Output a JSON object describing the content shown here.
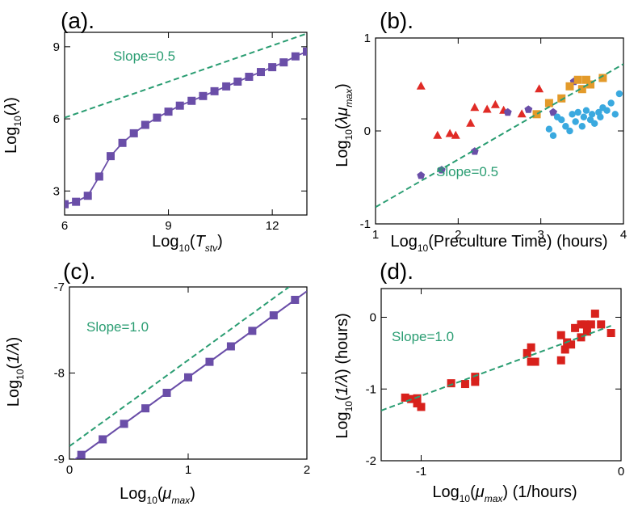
{
  "colors": {
    "purple": "#6a4ea8",
    "green": "#2a9d72",
    "red": "#e02b26",
    "orange": "#e39a2a",
    "blue": "#3aa9df",
    "sq_red": "#d8211c"
  },
  "chart_data": [
    {
      "panel": "(a).",
      "type": "line",
      "xlabel": {
        "main": "Log",
        "sub": "10",
        "arg": "T",
        "argsub": "stv"
      },
      "ylabel": {
        "main": "Log",
        "sub": "10",
        "arg": "λ"
      },
      "xlim": [
        6,
        13
      ],
      "ylim": [
        2,
        9.6
      ],
      "xticks": [
        6,
        9,
        12
      ],
      "yticks": [
        3,
        6,
        9
      ],
      "annotation": "Slope=0.5",
      "series": [
        {
          "kind": "line-markers",
          "color": "purple",
          "x": [
            6.0,
            6.33,
            6.67,
            7.0,
            7.33,
            7.67,
            8.0,
            8.33,
            8.67,
            9.0,
            9.33,
            9.67,
            10.0,
            10.33,
            10.67,
            11.0,
            11.33,
            11.67,
            12.0,
            12.33,
            12.67,
            13.0
          ],
          "y": [
            2.45,
            2.55,
            2.8,
            3.6,
            4.45,
            5.0,
            5.4,
            5.75,
            6.05,
            6.3,
            6.55,
            6.75,
            6.95,
            7.15,
            7.35,
            7.55,
            7.75,
            7.95,
            8.15,
            8.35,
            8.6,
            8.8
          ]
        },
        {
          "kind": "dashed",
          "color": "green",
          "x": [
            6,
            13
          ],
          "y": [
            6.05,
            9.55
          ]
        }
      ]
    },
    {
      "panel": "(b).",
      "type": "scatter",
      "xlabel": {
        "main": "Log",
        "sub": "10",
        "arg": "(Preculture Time) (hours)"
      },
      "ylabel": {
        "main": "Log",
        "sub": "10",
        "arg": "λμ",
        "argsub": "max"
      },
      "xlim": [
        1,
        4
      ],
      "ylim": [
        -1,
        1
      ],
      "xticks": [
        1,
        2,
        3,
        4
      ],
      "yticks": [
        -1,
        0,
        1
      ],
      "annotation": "Slope=0.5",
      "series": [
        {
          "kind": "triangle",
          "color": "red",
          "x": [
            1.55,
            1.75,
            1.9,
            1.97,
            2.15,
            2.2,
            2.35,
            2.45,
            2.55,
            2.77,
            2.98
          ],
          "y": [
            0.48,
            -0.05,
            -0.03,
            -0.05,
            0.08,
            0.25,
            0.23,
            0.28,
            0.22,
            0.18,
            0.45
          ]
        },
        {
          "kind": "pentagon",
          "color": "purple",
          "x": [
            1.55,
            1.8,
            2.2,
            2.6,
            2.85,
            3.15,
            3.4
          ],
          "y": [
            -0.48,
            -0.42,
            -0.22,
            0.2,
            0.23,
            0.2,
            0.53
          ]
        },
        {
          "kind": "square",
          "color": "orange",
          "x": [
            2.95,
            3.1,
            3.25,
            3.35,
            3.45,
            3.5,
            3.55,
            3.6,
            3.75
          ],
          "y": [
            0.18,
            0.3,
            0.35,
            0.48,
            0.55,
            0.45,
            0.55,
            0.5,
            0.57
          ]
        },
        {
          "kind": "circle",
          "color": "blue",
          "x": [
            3.1,
            3.15,
            3.2,
            3.25,
            3.3,
            3.35,
            3.38,
            3.42,
            3.45,
            3.5,
            3.52,
            3.55,
            3.6,
            3.62,
            3.65,
            3.7,
            3.72,
            3.75,
            3.8,
            3.85,
            3.9,
            3.95
          ],
          "y": [
            0.02,
            -0.05,
            0.15,
            0.12,
            0.05,
            0.0,
            0.18,
            0.1,
            0.2,
            0.05,
            0.15,
            0.22,
            0.12,
            0.18,
            0.08,
            0.2,
            0.15,
            0.25,
            0.22,
            0.3,
            0.18,
            0.4
          ]
        },
        {
          "kind": "dashed",
          "color": "green",
          "x": [
            1,
            4
          ],
          "y": [
            -0.82,
            0.72
          ]
        }
      ]
    },
    {
      "panel": "(c).",
      "type": "line",
      "xlabel": {
        "main": "Log",
        "sub": "10",
        "arg": "μ",
        "argsub": "max"
      },
      "ylabel": {
        "main": "Log",
        "sub": "10",
        "arg": "1/λ"
      },
      "xlim": [
        0,
        2
      ],
      "ylim": [
        -9,
        -7
      ],
      "xticks": [
        0,
        1,
        2
      ],
      "yticks": [
        -9,
        -8,
        -7
      ],
      "annotation": "Slope=1.0",
      "series": [
        {
          "kind": "line-markers",
          "color": "purple",
          "x": [
            0.1,
            0.28,
            0.46,
            0.64,
            0.82,
            1.0,
            1.18,
            1.36,
            1.54,
            1.72,
            1.9
          ],
          "y": [
            -8.95,
            -8.77,
            -8.59,
            -8.41,
            -8.23,
            -8.05,
            -7.87,
            -7.69,
            -7.51,
            -7.33,
            -7.15
          ]
        },
        {
          "kind": "dashed",
          "color": "green",
          "x": [
            0,
            1.85
          ],
          "y": [
            -8.85,
            -7.0
          ]
        },
        {
          "kind": "solid",
          "color": "purple",
          "x": [
            0,
            2
          ],
          "y": [
            -9.05,
            -7.05
          ]
        }
      ]
    },
    {
      "panel": "(d).",
      "type": "scatter",
      "xlabel": {
        "main": "Log",
        "sub": "10",
        "arg": "μ",
        "argsub": "max",
        "unit": "(1/hours)"
      },
      "ylabel": {
        "main": "Log",
        "sub": "10",
        "arg": "1/λ",
        "unit": "(hours)"
      },
      "xlim": [
        -1.2,
        0
      ],
      "ylim": [
        -2,
        0.4
      ],
      "xticks": [
        -1,
        0
      ],
      "yticks": [
        -2,
        -1,
        0
      ],
      "annotation": "Slope=1.0",
      "series": [
        {
          "kind": "square",
          "color": "sq_red",
          "x": [
            -1.08,
            -1.05,
            -1.02,
            -1.02,
            -1.0,
            -0.85,
            -0.78,
            -0.73,
            -0.73,
            -0.47,
            -0.45,
            -0.45,
            -0.43,
            -0.3,
            -0.3,
            -0.28,
            -0.27,
            -0.25,
            -0.23,
            -0.2,
            -0.2,
            -0.18,
            -0.17,
            -0.15,
            -0.13,
            -0.1,
            -0.05
          ],
          "y": [
            -1.12,
            -1.14,
            -1.2,
            -1.13,
            -1.25,
            -0.92,
            -0.93,
            -0.83,
            -0.9,
            -0.5,
            -0.42,
            -0.62,
            -0.62,
            -0.25,
            -0.6,
            -0.45,
            -0.35,
            -0.38,
            -0.15,
            -0.1,
            -0.28,
            -0.1,
            -0.2,
            -0.1,
            0.05,
            -0.1,
            -0.22
          ]
        },
        {
          "kind": "dashed",
          "color": "green",
          "x": [
            -1.2,
            -0.05
          ],
          "y": [
            -1.3,
            -0.12
          ]
        }
      ]
    }
  ]
}
